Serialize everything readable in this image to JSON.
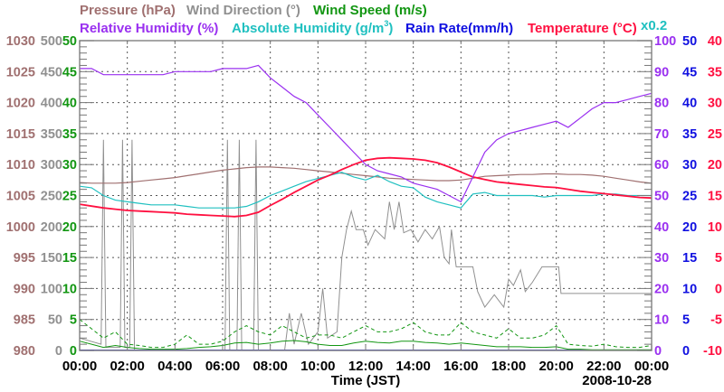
{
  "chart_data": {
    "type": "line",
    "legend": {
      "pressure": "Pressure (hPa)",
      "wind_direction": "Wind Direction (°)",
      "wind_speed": "Wind Speed (m/s)",
      "relative_humidity": "Relative Humidity (%)",
      "absolute_humidity_pre": "Absolute Humidity (g/m",
      "absolute_humidity_sup": "3",
      "absolute_humidity_post": ")",
      "rain_rate": "Rain Rate(mm/h)",
      "temperature": "Temperature (°C)",
      "abs_hum_scale": "x0.2"
    },
    "colors": {
      "pressure": "#a07070",
      "wind_direction": "#909090",
      "wind_speed": "#129612",
      "relative_humidity": "#9a30f0",
      "absolute_humidity": "#20c0c0",
      "rain_rate": "#1010e0",
      "temperature": "#ff1040"
    },
    "xlabel": "Time (JST)",
    "date": "2008-10-28",
    "x_ticks": [
      "00:00",
      "02:00",
      "04:00",
      "06:00",
      "08:00",
      "10:00",
      "12:00",
      "14:00",
      "16:00",
      "18:00",
      "20:00",
      "22:00",
      "00:00"
    ],
    "xlim_hours": [
      0,
      24
    ],
    "axes": {
      "pressure": {
        "ticks": [
          "980",
          "985",
          "990",
          "995",
          "1000",
          "1005",
          "1010",
          "1015",
          "1020",
          "1025",
          "1030"
        ],
        "ylim": [
          980,
          1030
        ]
      },
      "wind_direction": {
        "ticks": [
          "0",
          "50",
          "100",
          "150",
          "200",
          "250",
          "300",
          "350",
          "400",
          "450",
          "500"
        ],
        "ylim": [
          0,
          500
        ]
      },
      "wind_speed": {
        "ticks": [
          "0",
          "5",
          "10",
          "15",
          "20",
          "25",
          "30",
          "35",
          "40",
          "45",
          "50"
        ],
        "ylim": [
          0,
          50
        ]
      },
      "relative_humidity": {
        "ticks": [
          "0",
          "10",
          "20",
          "30",
          "40",
          "50",
          "60",
          "70",
          "80",
          "90",
          "100"
        ],
        "ylim": [
          0,
          100
        ]
      },
      "rain_rate": {
        "ticks": [
          "0",
          "5",
          "10",
          "15",
          "20",
          "25",
          "30",
          "35",
          "40",
          "45",
          "50"
        ],
        "ylim": [
          0,
          50
        ]
      },
      "temperature": {
        "ticks": [
          "-10",
          "-5",
          "0",
          "5",
          "10",
          "15",
          "20",
          "25",
          "30",
          "35",
          "40"
        ],
        "ylim": [
          -10,
          40
        ]
      },
      "absolute_humidity": {
        "ylim": [
          0,
          20
        ]
      }
    },
    "x_hours_step": 0.5,
    "series": {
      "relative_humidity": [
        91,
        91,
        89,
        89,
        89,
        89,
        89,
        89,
        90,
        90,
        90,
        90,
        91,
        91,
        91,
        92,
        88,
        85,
        82,
        80,
        76,
        72,
        68,
        64,
        60,
        58,
        57,
        56,
        54,
        53,
        52,
        50,
        48,
        56,
        64,
        68,
        70,
        71,
        72,
        73,
        74,
        72,
        75,
        78,
        80,
        80,
        81,
        82,
        83
      ],
      "pressure": [
        1007.1,
        1007.0,
        1007.0,
        1007.0,
        1007.1,
        1007.3,
        1007.5,
        1007.7,
        1007.9,
        1008.2,
        1008.5,
        1008.8,
        1009.1,
        1009.3,
        1009.5,
        1009.6,
        1009.6,
        1009.5,
        1009.4,
        1009.2,
        1009.0,
        1008.8,
        1008.6,
        1008.4,
        1008.2,
        1008.0,
        1007.8,
        1007.7,
        1007.6,
        1007.5,
        1007.4,
        1007.4,
        1007.5,
        1007.8,
        1008.1,
        1008.2,
        1008.3,
        1008.4,
        1008.4,
        1008.5,
        1008.5,
        1008.4,
        1008.4,
        1008.3,
        1008.1,
        1007.8,
        1007.5,
        1007.2,
        1007.0
      ],
      "temperature": [
        13.6,
        13.3,
        13.0,
        12.8,
        12.6,
        12.5,
        12.4,
        12.3,
        12.2,
        12.0,
        11.9,
        11.8,
        11.7,
        11.6,
        11.8,
        12.3,
        13.4,
        14.4,
        15.5,
        16.5,
        17.5,
        18.3,
        19.2,
        20.0,
        20.7,
        21.0,
        21.1,
        21.0,
        20.9,
        20.7,
        20.3,
        19.6,
        18.8,
        18.0,
        17.6,
        17.2,
        17.0,
        16.8,
        16.6,
        16.4,
        16.3,
        16.0,
        15.7,
        15.5,
        15.3,
        15.1,
        14.9,
        14.7,
        14.6
      ],
      "absolute_humidity": [
        10.6,
        10.5,
        10.0,
        9.7,
        9.6,
        9.5,
        9.4,
        9.4,
        9.4,
        9.3,
        9.2,
        9.2,
        9.2,
        9.2,
        9.3,
        9.6,
        10.0,
        10.3,
        10.6,
        10.9,
        11.1,
        11.3,
        11.5,
        11.2,
        11.0,
        11.3,
        10.9,
        10.6,
        10.5,
        9.9,
        9.6,
        9.4,
        9.2,
        10.1,
        10.2,
        10.0,
        10.0,
        10.0,
        10.0,
        9.9,
        10.0,
        10.0,
        10.0,
        10.0,
        10.1,
        10.1,
        10.0,
        10.0,
        10.0
      ],
      "wind_speed_avg": [
        1.5,
        1,
        0.5,
        0.8,
        0.5,
        0.3,
        0.2,
        0.2,
        0.2,
        0.3,
        0.5,
        0.6,
        0.8,
        1.2,
        1.3,
        1.0,
        1.2,
        1.5,
        1.6,
        1.4,
        1.0,
        0.8,
        0.8,
        1.2,
        1.5,
        1.3,
        1.2,
        1.5,
        1.5,
        1.3,
        1.2,
        1.0,
        1.2,
        1.0,
        0.8,
        0.6,
        0.6,
        0.6,
        0.5,
        0.5,
        0.6,
        0.2,
        0.2,
        0.1,
        0.1,
        0.1,
        0.1,
        0.1,
        0.1
      ],
      "wind_speed_max": [
        5,
        3.5,
        2,
        3,
        1,
        0.8,
        0.5,
        0.5,
        1,
        2.5,
        1,
        1,
        1.5,
        3,
        4,
        3,
        2.5,
        4,
        3,
        2,
        2.5,
        2.5,
        2,
        3,
        4,
        3,
        3,
        3.5,
        4.5,
        3,
        2.5,
        2.5,
        4.5,
        3,
        2.5,
        2,
        3.5,
        2,
        2,
        2.5,
        4,
        1,
        0.8,
        0.7,
        1,
        0.6,
        0.5,
        0.5,
        0.8
      ],
      "rain_rate": [
        0,
        0
      ],
      "wind_direction_points": [
        [
          0,
          20
        ],
        [
          0.9,
          10
        ],
        [
          1.0,
          340
        ],
        [
          1.1,
          5
        ],
        [
          1.7,
          5
        ],
        [
          1.8,
          340
        ],
        [
          1.9,
          5
        ],
        [
          2.1,
          5
        ],
        [
          2.2,
          340
        ],
        [
          2.3,
          0
        ],
        [
          6.1,
          0
        ],
        [
          6.2,
          340
        ],
        [
          6.3,
          0
        ],
        [
          6.6,
          0
        ],
        [
          6.7,
          340
        ],
        [
          6.8,
          0
        ],
        [
          7.3,
          0
        ],
        [
          7.4,
          340
        ],
        [
          7.5,
          0
        ],
        [
          8.6,
          0
        ],
        [
          8.8,
          60
        ],
        [
          9.0,
          10
        ],
        [
          9.3,
          60
        ],
        [
          9.6,
          10
        ],
        [
          10.0,
          30
        ],
        [
          10.2,
          100
        ],
        [
          10.4,
          20
        ],
        [
          10.8,
          30
        ],
        [
          11.0,
          150
        ],
        [
          11.2,
          195
        ],
        [
          11.4,
          225
        ],
        [
          11.6,
          195
        ],
        [
          11.9,
          195
        ],
        [
          12.1,
          170
        ],
        [
          12.4,
          195
        ],
        [
          12.8,
          180
        ],
        [
          13.0,
          240
        ],
        [
          13.2,
          195
        ],
        [
          13.4,
          240
        ],
        [
          13.6,
          190
        ],
        [
          13.9,
          195
        ],
        [
          14.2,
          175
        ],
        [
          14.5,
          195
        ],
        [
          14.8,
          180
        ],
        [
          15.1,
          200
        ],
        [
          15.3,
          150
        ],
        [
          15.5,
          140
        ],
        [
          15.6,
          195
        ],
        [
          15.8,
          135
        ],
        [
          16.5,
          135
        ],
        [
          16.7,
          95
        ],
        [
          17.0,
          70
        ],
        [
          17.4,
          90
        ],
        [
          17.8,
          70
        ],
        [
          18.0,
          115
        ],
        [
          18.2,
          105
        ],
        [
          18.5,
          130
        ],
        [
          18.7,
          95
        ],
        [
          19.0,
          110
        ],
        [
          19.4,
          135
        ],
        [
          20.1,
          135
        ],
        [
          20.2,
          92
        ],
        [
          24,
          92
        ]
      ]
    }
  }
}
